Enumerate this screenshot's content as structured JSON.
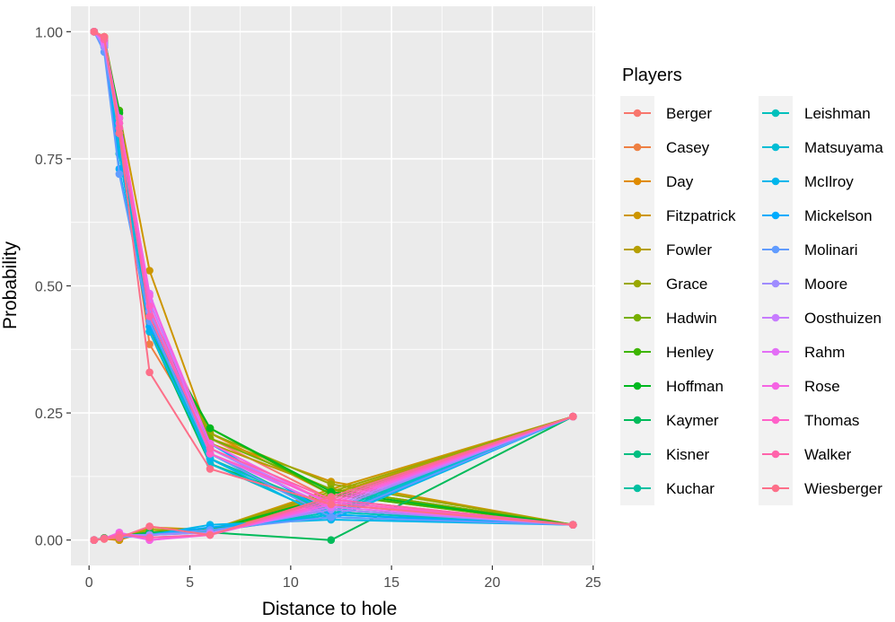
{
  "chart_data": {
    "type": "line",
    "title": "",
    "xlabel": "Distance to hole",
    "ylabel": "Probability",
    "xlim": [
      -0.9,
      25.1
    ],
    "ylim": [
      -0.05,
      1.05
    ],
    "x_ticks": [
      0,
      5,
      10,
      15,
      20,
      25
    ],
    "x_tick_labels": [
      "0",
      "5",
      "10",
      "15",
      "20",
      "25"
    ],
    "y_ticks": [
      0,
      0.25,
      0.5,
      0.75,
      1
    ],
    "y_tick_labels": [
      "0.00",
      "0.25",
      "0.50",
      "0.75",
      "1.00"
    ],
    "x": [
      0.25,
      0.75,
      1.5,
      3,
      6,
      12,
      24
    ],
    "grid": true,
    "legend": {
      "title": "Players",
      "position": "right"
    },
    "series": [
      {
        "name": "Berger",
        "color": "#F8766D",
        "decline": [
          1.0,
          0.985,
          0.82,
          0.45,
          0.2,
          0.08,
          0.03
        ],
        "rise": [
          0.0,
          0.004,
          0.01,
          0.015,
          0.02,
          0.06,
          0.243
        ]
      },
      {
        "name": "Casey",
        "color": "#EE8043",
        "decline": [
          1.0,
          0.99,
          0.8,
          0.385,
          0.19,
          0.1,
          0.03
        ],
        "rise": [
          0.0,
          0.002,
          0.0,
          0.02,
          0.015,
          0.08,
          0.243
        ]
      },
      {
        "name": "Day",
        "color": "#E08B00",
        "decline": [
          1.0,
          0.99,
          0.83,
          0.45,
          0.21,
          0.09,
          0.03
        ],
        "rise": [
          0.0,
          0.003,
          0.0,
          0.02,
          0.02,
          0.09,
          0.243
        ]
      },
      {
        "name": "Fitzpatrick",
        "color": "#CD9600",
        "decline": [
          1.0,
          0.99,
          0.84,
          0.53,
          0.2,
          0.115,
          0.03
        ],
        "rise": [
          0.0,
          0.004,
          0.0,
          0.025,
          0.02,
          0.1,
          0.243
        ]
      },
      {
        "name": "Fowler",
        "color": "#B69F00",
        "decline": [
          1.0,
          0.985,
          0.81,
          0.41,
          0.19,
          0.1,
          0.03
        ],
        "rise": [
          0.0,
          0.003,
          0.005,
          0.02,
          0.018,
          0.09,
          0.243
        ]
      },
      {
        "name": "Grace",
        "color": "#9AA800",
        "decline": [
          1.0,
          0.98,
          0.82,
          0.43,
          0.21,
          0.11,
          0.03
        ],
        "rise": [
          0.0,
          0.004,
          0.005,
          0.02,
          0.02,
          0.095,
          0.243
        ]
      },
      {
        "name": "Hadwin",
        "color": "#77AF00",
        "decline": [
          1.0,
          0.985,
          0.83,
          0.44,
          0.2,
          0.1,
          0.03
        ],
        "rise": [
          0.0,
          0.003,
          0.005,
          0.015,
          0.018,
          0.085,
          0.243
        ]
      },
      {
        "name": "Henley",
        "color": "#3DB500",
        "decline": [
          1.0,
          0.98,
          0.845,
          0.42,
          0.22,
          0.09,
          0.03
        ],
        "rise": [
          0.0,
          0.003,
          0.008,
          0.015,
          0.02,
          0.08,
          0.243
        ]
      },
      {
        "name": "Hoffman",
        "color": "#00B81F",
        "decline": [
          1.0,
          0.985,
          0.84,
          0.43,
          0.22,
          0.095,
          0.03
        ],
        "rise": [
          0.0,
          0.004,
          0.006,
          0.015,
          0.02,
          0.085,
          0.243
        ]
      },
      {
        "name": "Kaymer",
        "color": "#00BB5A",
        "decline": [
          1.0,
          0.98,
          0.76,
          0.41,
          0.15,
          0.06,
          0.03
        ],
        "rise": [
          0.0,
          0.003,
          0.006,
          0.015,
          0.015,
          0.0,
          0.243
        ]
      },
      {
        "name": "Kisner",
        "color": "#00BE81",
        "decline": [
          1.0,
          0.975,
          0.8,
          0.42,
          0.16,
          0.06,
          0.03
        ],
        "rise": [
          0.0,
          0.003,
          0.006,
          0.01,
          0.015,
          0.06,
          0.243
        ]
      },
      {
        "name": "Kuchar",
        "color": "#00C0A1",
        "decline": [
          1.0,
          0.975,
          0.79,
          0.43,
          0.17,
          0.05,
          0.03
        ],
        "rise": [
          0.0,
          0.003,
          0.006,
          0.01,
          0.017,
          0.05,
          0.243
        ]
      },
      {
        "name": "Leishman",
        "color": "#00C0BC",
        "decline": [
          1.0,
          0.975,
          0.78,
          0.43,
          0.16,
          0.055,
          0.03
        ],
        "rise": [
          0.0,
          0.003,
          0.006,
          0.01,
          0.016,
          0.055,
          0.243
        ]
      },
      {
        "name": "Matsuyama",
        "color": "#00BDD4",
        "decline": [
          1.0,
          0.975,
          0.77,
          0.44,
          0.15,
          0.045,
          0.03
        ],
        "rise": [
          0.0,
          0.003,
          0.006,
          0.01,
          0.02,
          0.05,
          0.243
        ]
      },
      {
        "name": "McIlroy",
        "color": "#00B6EB",
        "decline": [
          1.0,
          0.97,
          0.76,
          0.41,
          0.16,
          0.04,
          0.03
        ],
        "rise": [
          0.0,
          0.003,
          0.005,
          0.01,
          0.03,
          0.04,
          0.243
        ]
      },
      {
        "name": "Mickelson",
        "color": "#00ABFD",
        "decline": [
          1.0,
          0.97,
          0.73,
          0.42,
          0.19,
          0.05,
          0.03
        ],
        "rise": [
          0.0,
          0.003,
          0.005,
          0.01,
          0.025,
          0.045,
          0.243
        ]
      },
      {
        "name": "Molinari",
        "color": "#619CFF",
        "decline": [
          1.0,
          0.96,
          0.72,
          0.43,
          0.17,
          0.045,
          0.03
        ],
        "rise": [
          0.0,
          0.003,
          0.005,
          0.01,
          0.02,
          0.045,
          0.243
        ]
      },
      {
        "name": "Moore",
        "color": "#9F8CFF",
        "decline": [
          1.0,
          0.97,
          0.8,
          0.45,
          0.18,
          0.06,
          0.03
        ],
        "rise": [
          0.0,
          0.003,
          0.01,
          0.01,
          0.015,
          0.06,
          0.243
        ]
      },
      {
        "name": "Oosthuizen",
        "color": "#C77CFF",
        "decline": [
          1.0,
          0.975,
          0.81,
          0.47,
          0.18,
          0.07,
          0.03
        ],
        "rise": [
          0.0,
          0.003,
          0.012,
          0.0,
          0.012,
          0.065,
          0.243
        ]
      },
      {
        "name": "Rahm",
        "color": "#E36EF6",
        "decline": [
          1.0,
          0.98,
          0.82,
          0.485,
          0.17,
          0.065,
          0.03
        ],
        "rise": [
          0.0,
          0.003,
          0.015,
          0.0,
          0.012,
          0.07,
          0.243
        ]
      },
      {
        "name": "Rose",
        "color": "#F564E3",
        "decline": [
          1.0,
          0.985,
          0.83,
          0.48,
          0.19,
          0.07,
          0.03
        ],
        "rise": [
          0.0,
          0.003,
          0.014,
          0.0,
          0.01,
          0.07,
          0.243
        ]
      },
      {
        "name": "Thomas",
        "color": "#FF61C9",
        "decline": [
          1.0,
          0.985,
          0.82,
          0.46,
          0.17,
          0.075,
          0.03
        ],
        "rise": [
          0.0,
          0.003,
          0.012,
          0.005,
          0.01,
          0.075,
          0.243
        ]
      },
      {
        "name": "Walker",
        "color": "#FF64AB",
        "decline": [
          1.0,
          0.985,
          0.81,
          0.44,
          0.18,
          0.08,
          0.03
        ],
        "rise": [
          0.0,
          0.003,
          0.01,
          0.005,
          0.01,
          0.08,
          0.243
        ]
      },
      {
        "name": "Wiesberger",
        "color": "#FD6F89",
        "decline": [
          1.0,
          0.99,
          0.8,
          0.33,
          0.14,
          0.07,
          0.03
        ],
        "rise": [
          0.0,
          0.002,
          0.005,
          0.027,
          0.01,
          0.085,
          0.243
        ]
      }
    ]
  }
}
